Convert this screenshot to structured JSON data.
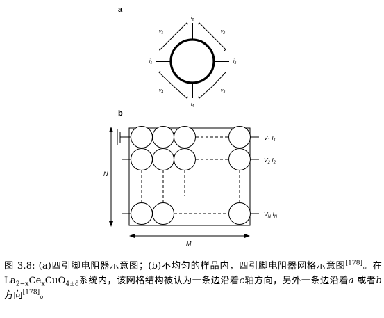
{
  "panel_a": {
    "label": "a",
    "pins": [
      "i1",
      "i2",
      "i3",
      "i4"
    ],
    "volts": [
      "v1",
      "v2",
      "v3",
      "v4"
    ]
  },
  "panel_b": {
    "label": "b",
    "row_labels": [
      {
        "v": "V1",
        "i": "I1"
      },
      {
        "v": "V2",
        "i": "I2"
      },
      {
        "v": "VN",
        "i": "IN"
      }
    ],
    "axis_n": "N",
    "axis_m": "M"
  },
  "caption": {
    "part1": "图 3.8: (a)四引脚电阻器示意图；(b)不均匀的样品内，四引脚电阻器网格示意图",
    "ref1": "[178]",
    "part2": "。在La",
    "sub1": "2−x",
    "part3": "Ce",
    "sub2": "x",
    "part4": "CuO",
    "sub3": "4±δ",
    "part5": "系统内，该网格结构被认为一条边沿着",
    "var_c": "c",
    "part6": "轴方向，另外一条边沿着",
    "var_a": "a",
    "part7": " 或者",
    "var_b": "b",
    "part8": " 方向",
    "ref2": "[178]",
    "part9": "。"
  }
}
